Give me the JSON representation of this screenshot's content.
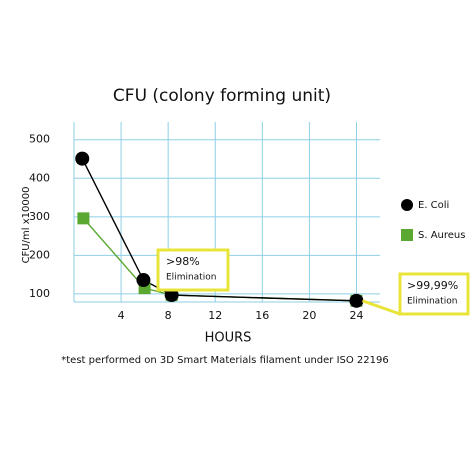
{
  "chart_data": {
    "type": "line",
    "title": "CFU (colony forming unit)",
    "x_label": "HOURS",
    "y_label": "CFU/ml x10000",
    "footnote": "*test performed on 3D Smart Materials filament under ISO 22196",
    "xlim": [
      0,
      26
    ],
    "xticks": [
      4,
      8,
      12,
      16,
      20,
      24
    ],
    "ylim": [
      79,
      546
    ],
    "yticks": [
      100,
      200,
      300,
      400,
      500
    ],
    "grid": true,
    "grid_color": "#8ecfe6",
    "series": [
      {
        "name": "E. Coli",
        "color": "#000000",
        "x": [
          0.7,
          5.9,
          8.3,
          24
        ],
        "values": [
          451,
          136,
          97,
          82
        ]
      },
      {
        "name": "S. Aureus",
        "color": "#5aa832",
        "x": [
          0.8,
          6,
          8.3,
          24
        ],
        "values": [
          296,
          115,
          97,
          82
        ]
      }
    ],
    "annotations": [
      {
        "lines": [
          ">98%",
          "Elimination"
        ],
        "x": 6,
        "y": 115,
        "color": "#e8e43a"
      },
      {
        "lines": [
          ">99,99%",
          "Elimination"
        ],
        "x": 24,
        "y": 82,
        "color": "#e8e43a"
      }
    ]
  }
}
